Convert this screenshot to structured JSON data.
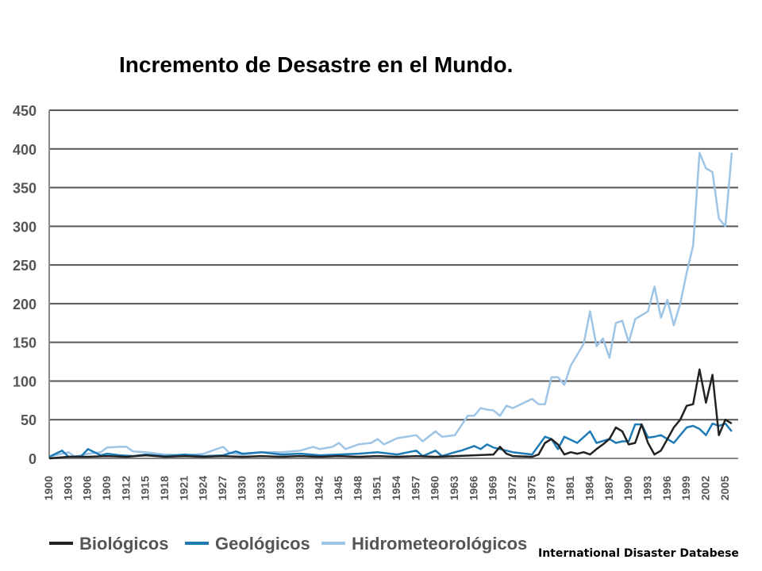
{
  "source": "International Disaster Databese",
  "chart_data": {
    "type": "line",
    "title": "Incremento de Desastre en el Mundo.",
    "xlabel": "",
    "ylabel": "",
    "ylim": [
      0,
      450
    ],
    "xlim": [
      1900,
      2005
    ],
    "yticks": [
      0,
      50,
      100,
      150,
      200,
      250,
      300,
      350,
      400,
      450
    ],
    "xticks": [
      1900,
      1903,
      1906,
      1909,
      1912,
      1915,
      1918,
      1921,
      1924,
      1927,
      1930,
      1933,
      1936,
      1939,
      1942,
      1945,
      1948,
      1951,
      1954,
      1957,
      1960,
      1963,
      1966,
      1969,
      1972,
      1975,
      1978,
      1981,
      1984,
      1987,
      1990,
      1993,
      1996,
      1999,
      2002,
      2005
    ],
    "grid": "horizontal",
    "legend": "bottom",
    "series": [
      {
        "name": "Biológicos",
        "color": "#222222",
        "points": [
          [
            1900,
            0
          ],
          [
            1903,
            2
          ],
          [
            1906,
            2
          ],
          [
            1909,
            3
          ],
          [
            1912,
            2
          ],
          [
            1915,
            4
          ],
          [
            1918,
            2
          ],
          [
            1921,
            3
          ],
          [
            1924,
            2
          ],
          [
            1927,
            3
          ],
          [
            1930,
            2
          ],
          [
            1933,
            3
          ],
          [
            1936,
            2
          ],
          [
            1939,
            3
          ],
          [
            1942,
            2
          ],
          [
            1945,
            3
          ],
          [
            1948,
            2
          ],
          [
            1951,
            3
          ],
          [
            1954,
            2
          ],
          [
            1957,
            3
          ],
          [
            1960,
            2
          ],
          [
            1963,
            3
          ],
          [
            1966,
            4
          ],
          [
            1969,
            5
          ],
          [
            1970,
            15
          ],
          [
            1971,
            6
          ],
          [
            1972,
            3
          ],
          [
            1975,
            2
          ],
          [
            1976,
            5
          ],
          [
            1977,
            20
          ],
          [
            1978,
            25
          ],
          [
            1979,
            18
          ],
          [
            1980,
            5
          ],
          [
            1981,
            8
          ],
          [
            1982,
            6
          ],
          [
            1983,
            8
          ],
          [
            1984,
            5
          ],
          [
            1985,
            12
          ],
          [
            1986,
            18
          ],
          [
            1987,
            25
          ],
          [
            1988,
            40
          ],
          [
            1989,
            35
          ],
          [
            1990,
            18
          ],
          [
            1991,
            20
          ],
          [
            1992,
            44
          ],
          [
            1993,
            20
          ],
          [
            1994,
            5
          ],
          [
            1995,
            10
          ],
          [
            1996,
            25
          ],
          [
            1997,
            40
          ],
          [
            1998,
            50
          ],
          [
            1999,
            68
          ],
          [
            2000,
            70
          ],
          [
            2001,
            115
          ],
          [
            2002,
            72
          ],
          [
            2003,
            108
          ],
          [
            2004,
            30
          ],
          [
            2005,
            50
          ],
          [
            2006,
            45
          ]
        ]
      },
      {
        "name": "Geológicos",
        "color": "#1f7bb6",
        "points": [
          [
            1900,
            2
          ],
          [
            1902,
            10
          ],
          [
            1903,
            2
          ],
          [
            1905,
            3
          ],
          [
            1906,
            12
          ],
          [
            1908,
            4
          ],
          [
            1909,
            6
          ],
          [
            1911,
            4
          ],
          [
            1913,
            3
          ],
          [
            1915,
            5
          ],
          [
            1918,
            3
          ],
          [
            1921,
            5
          ],
          [
            1924,
            3
          ],
          [
            1927,
            4
          ],
          [
            1929,
            9
          ],
          [
            1930,
            6
          ],
          [
            1933,
            8
          ],
          [
            1936,
            5
          ],
          [
            1939,
            6
          ],
          [
            1942,
            4
          ],
          [
            1945,
            5
          ],
          [
            1948,
            6
          ],
          [
            1951,
            8
          ],
          [
            1954,
            5
          ],
          [
            1957,
            10
          ],
          [
            1958,
            3
          ],
          [
            1960,
            10
          ],
          [
            1961,
            3
          ],
          [
            1963,
            8
          ],
          [
            1964,
            10
          ],
          [
            1966,
            16
          ],
          [
            1967,
            12
          ],
          [
            1968,
            18
          ],
          [
            1969,
            14
          ],
          [
            1972,
            8
          ],
          [
            1975,
            5
          ],
          [
            1977,
            28
          ],
          [
            1978,
            25
          ],
          [
            1979,
            12
          ],
          [
            1980,
            28
          ],
          [
            1982,
            20
          ],
          [
            1984,
            35
          ],
          [
            1985,
            20
          ],
          [
            1987,
            25
          ],
          [
            1988,
            20
          ],
          [
            1989,
            22
          ],
          [
            1990,
            22
          ],
          [
            1991,
            44
          ],
          [
            1992,
            44
          ],
          [
            1993,
            27
          ],
          [
            1994,
            28
          ],
          [
            1995,
            30
          ],
          [
            1996,
            25
          ],
          [
            1997,
            20
          ],
          [
            1998,
            30
          ],
          [
            1999,
            40
          ],
          [
            2000,
            42
          ],
          [
            2001,
            38
          ],
          [
            2002,
            30
          ],
          [
            2003,
            45
          ],
          [
            2004,
            42
          ],
          [
            2005,
            45
          ],
          [
            2006,
            35
          ]
        ]
      },
      {
        "name": "Hidrometeorológicos",
        "color": "#9ec5e6",
        "points": [
          [
            1900,
            2
          ],
          [
            1902,
            6
          ],
          [
            1903,
            8
          ],
          [
            1904,
            2
          ],
          [
            1906,
            6
          ],
          [
            1908,
            8
          ],
          [
            1909,
            14
          ],
          [
            1911,
            15
          ],
          [
            1912,
            15
          ],
          [
            1913,
            9
          ],
          [
            1915,
            8
          ],
          [
            1918,
            5
          ],
          [
            1921,
            4
          ],
          [
            1924,
            6
          ],
          [
            1927,
            15
          ],
          [
            1928,
            7
          ],
          [
            1930,
            5
          ],
          [
            1933,
            8
          ],
          [
            1936,
            8
          ],
          [
            1939,
            10
          ],
          [
            1941,
            15
          ],
          [
            1942,
            12
          ],
          [
            1944,
            15
          ],
          [
            1945,
            20
          ],
          [
            1946,
            12
          ],
          [
            1948,
            18
          ],
          [
            1950,
            20
          ],
          [
            1951,
            25
          ],
          [
            1952,
            18
          ],
          [
            1954,
            26
          ],
          [
            1957,
            30
          ],
          [
            1958,
            22
          ],
          [
            1960,
            35
          ],
          [
            1961,
            28
          ],
          [
            1963,
            30
          ],
          [
            1965,
            55
          ],
          [
            1966,
            55
          ],
          [
            1967,
            65
          ],
          [
            1968,
            63
          ],
          [
            1969,
            62
          ],
          [
            1970,
            55
          ],
          [
            1971,
            68
          ],
          [
            1972,
            65
          ],
          [
            1975,
            77
          ],
          [
            1976,
            70
          ],
          [
            1977,
            70
          ],
          [
            1978,
            105
          ],
          [
            1979,
            105
          ],
          [
            1980,
            95
          ],
          [
            1981,
            120
          ],
          [
            1983,
            148
          ],
          [
            1984,
            190
          ],
          [
            1985,
            145
          ],
          [
            1986,
            155
          ],
          [
            1987,
            130
          ],
          [
            1988,
            175
          ],
          [
            1989,
            178
          ],
          [
            1990,
            150
          ],
          [
            1991,
            180
          ],
          [
            1993,
            190
          ],
          [
            1994,
            222
          ],
          [
            1995,
            182
          ],
          [
            1996,
            205
          ],
          [
            1997,
            172
          ],
          [
            1998,
            200
          ],
          [
            1999,
            240
          ],
          [
            2000,
            275
          ],
          [
            2001,
            395
          ],
          [
            2002,
            375
          ],
          [
            2003,
            370
          ],
          [
            2004,
            310
          ],
          [
            2005,
            300
          ],
          [
            2006,
            395
          ]
        ]
      }
    ]
  }
}
